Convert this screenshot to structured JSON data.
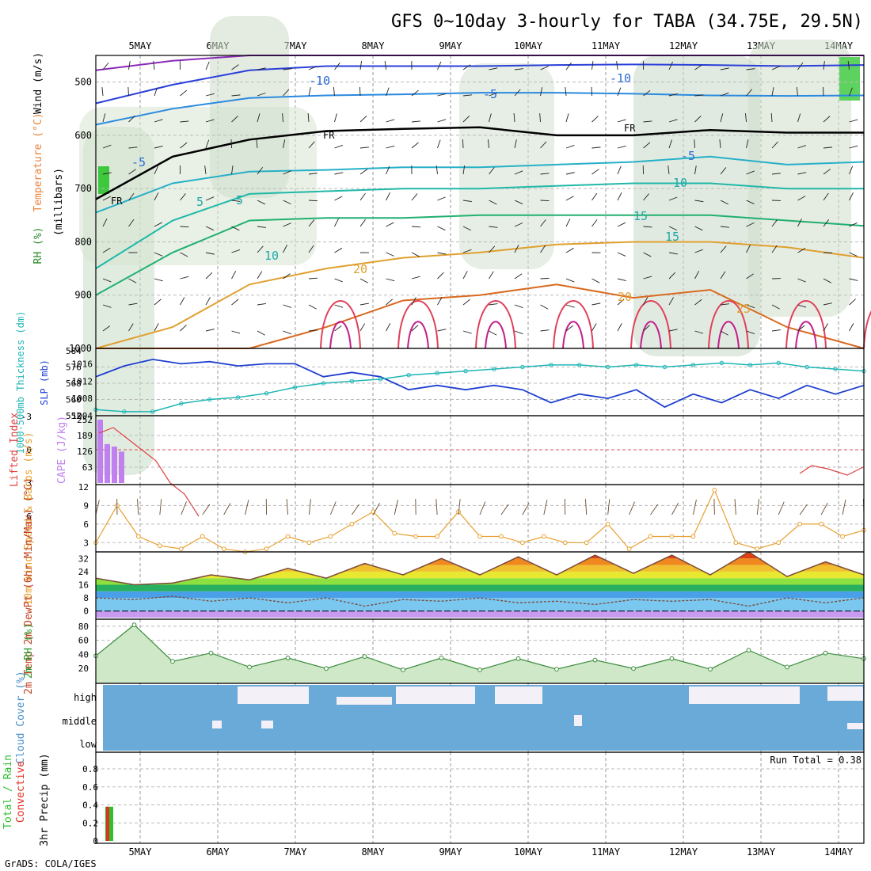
{
  "header": {
    "title": "GFS 0~10day 3-hourly for TABA (34.75E, 29.5N)"
  },
  "footer": {
    "credit": "GrADS: COLA/IGES",
    "run_total": "Run Total = 0.38"
  },
  "colors": {
    "slp": "#1f3fcf",
    "thickness": "#20b5b5",
    "li": "#e04040",
    "cape": "#c080f0",
    "wind10m": "#e8a030",
    "rh2m_line": "#3c8c3c",
    "rh2m_fill": "#cfe8c8",
    "cloud_fill": "#6aaad8",
    "precip_total": "#2ec02e",
    "precip_conv": "#e03020"
  },
  "chart_data": [
    {
      "id": "profile",
      "type": "heatmap",
      "ylabel_parts": [
        {
          "text": "RH (%)",
          "color": "#2a8a2a"
        },
        {
          "text": "Temperature (°C)",
          "color": "#e8843c"
        },
        {
          "text": "Wind (m/s)",
          "color": "#000000"
        }
      ],
      "ylabel2": "(millibars)",
      "x_ticks": [
        "5MAY",
        "6MAY",
        "7MAY",
        "8MAY",
        "9MAY",
        "10MAY",
        "11MAY",
        "12MAY",
        "13MAY",
        "14MAY"
      ],
      "y_ticks": [
        "500",
        "600",
        "700",
        "800",
        "900",
        "1000"
      ],
      "ylim": [
        1000,
        450
      ],
      "contour_labels": [
        "-10",
        "-10",
        "-5",
        "FR",
        "FR",
        "-5",
        "-5",
        "5",
        "10",
        "5",
        "15",
        "10",
        "15",
        "20",
        "20",
        "25"
      ],
      "isotherms": [
        {
          "temp": -15,
          "p": [
            478,
            460,
            450,
            450,
            450,
            450,
            450,
            450,
            450,
            450,
            450
          ]
        },
        {
          "temp": -10,
          "p": [
            540,
            505,
            478,
            470,
            470,
            470,
            468,
            467,
            468,
            470,
            468
          ]
        },
        {
          "temp": -5,
          "p": [
            580,
            550,
            530,
            525,
            523,
            520,
            520,
            522,
            525,
            526,
            525
          ]
        },
        {
          "temp": 0,
          "p": [
            720,
            640,
            608,
            592,
            588,
            585,
            600,
            600,
            590,
            595,
            595
          ]
        },
        {
          "temp": 5,
          "p": [
            745,
            690,
            668,
            665,
            660,
            660,
            655,
            650,
            640,
            655,
            650
          ]
        },
        {
          "temp": 10,
          "p": [
            850,
            760,
            710,
            705,
            700,
            700,
            695,
            690,
            690,
            700,
            700
          ]
        },
        {
          "temp": 15,
          "p": [
            900,
            820,
            760,
            755,
            755,
            750,
            750,
            750,
            750,
            760,
            770
          ]
        },
        {
          "temp": 20,
          "p": [
            1000,
            960,
            880,
            850,
            830,
            820,
            805,
            800,
            800,
            810,
            830
          ]
        },
        {
          "temp": 25,
          "p": [
            1000,
            1000,
            1000,
            960,
            910,
            900,
            880,
            905,
            890,
            960,
            1000
          ]
        }
      ]
    },
    {
      "id": "slp-thickness",
      "type": "line",
      "ylabel_left": "1000-500mb Thickness (dm)",
      "ylabel_right": "SLP (mb)",
      "thickness_ticks": [
        "584",
        "576",
        "568",
        "560",
        "552"
      ],
      "slp_ticks": [
        "1016",
        "1012",
        "1008",
        "1004"
      ],
      "series": [
        {
          "name": "SLP",
          "values": [
            1013,
            1015.5,
            1017,
            1016,
            1016.5,
            1015.5,
            1016,
            1016,
            1013,
            1014,
            1013,
            1010,
            1011,
            1010,
            1011,
            1010,
            1007,
            1009,
            1008,
            1010,
            1006,
            1009,
            1007,
            1010,
            1008,
            1011,
            1009,
            1011
          ]
        },
        {
          "name": "1000-500mb Thickness",
          "values": [
            555,
            554,
            554,
            558,
            560,
            561,
            563,
            566,
            568,
            569,
            570,
            572,
            573,
            574,
            575,
            576,
            577,
            577,
            576,
            577,
            576,
            577,
            578,
            577,
            578,
            576,
            575,
            574
          ]
        }
      ]
    },
    {
      "id": "li-cape",
      "type": "bar",
      "ylabel_left": "Lifted Index",
      "ylabel_right": "CAPE (J/kg)",
      "li_ticks": [
        "-3",
        "0",
        "3",
        "6"
      ],
      "cape_ticks": [
        "252",
        "189",
        "126",
        "63"
      ],
      "cape_values": [
        252,
        155,
        145,
        125
      ],
      "li_values": [
        -1.5,
        -2,
        -1,
        0,
        1,
        3,
        4,
        6
      ]
    },
    {
      "id": "wind10m",
      "type": "line",
      "ylabel": "10m Wind Speed & Barbs (m/s)",
      "y_ticks": [
        "12",
        "9",
        "6",
        "3"
      ],
      "ylim": [
        1.5,
        12
      ],
      "values": [
        3,
        9,
        4,
        2.5,
        2,
        4,
        2,
        1.5,
        2,
        4,
        3,
        4,
        6,
        8,
        4.5,
        4,
        4,
        8,
        4,
        4,
        3,
        4,
        3,
        3,
        6,
        2,
        4,
        4,
        4,
        11.5,
        3,
        2,
        3,
        6,
        6,
        4,
        5
      ]
    },
    {
      "id": "temp2m",
      "type": "area",
      "ylabel": "2m Temp 2m DewPt (6hr Min/Max) (°C)",
      "y_ticks": [
        "32",
        "24",
        "16",
        "8",
        "0"
      ],
      "ylim": [
        -4,
        36
      ],
      "temp": [
        20,
        16,
        17,
        22,
        19,
        26,
        20,
        29,
        22,
        32,
        22,
        33,
        22,
        34,
        23,
        34,
        22,
        36,
        21,
        30,
        22
      ],
      "dewpoint": [
        8,
        7,
        9,
        6,
        8,
        5,
        8,
        3,
        7,
        6,
        8,
        5,
        6,
        4,
        7,
        6,
        7,
        3,
        8,
        5,
        8
      ]
    },
    {
      "id": "rh2m",
      "type": "area",
      "ylabel": "2m RH (%)",
      "y_ticks": [
        "80",
        "60",
        "40",
        "20"
      ],
      "ylim": [
        0,
        90
      ],
      "values": [
        38,
        82,
        30,
        42,
        22,
        35,
        20,
        37,
        18,
        35,
        18,
        34,
        19,
        32,
        20,
        34,
        19,
        46,
        22,
        42,
        34
      ]
    },
    {
      "id": "cloud",
      "type": "bar",
      "ylabel": "Cloud Cover (%)",
      "y_ticks": [
        "high",
        "middle",
        "low"
      ]
    },
    {
      "id": "precip",
      "type": "bar",
      "ylabel_parts": [
        {
          "text": "Total / Rain",
          "color": "#2ec02e"
        },
        {
          "text": "Convective",
          "color": "#e03020"
        },
        {
          "text": "3hr Precip (mm)",
          "color": "#000000"
        }
      ],
      "y_ticks": [
        "0.8",
        "0.6",
        "0.4",
        "0.2",
        "0"
      ],
      "ylim": [
        0,
        0.95
      ],
      "total": [
        0.38
      ],
      "convective": [
        0.38
      ]
    }
  ]
}
